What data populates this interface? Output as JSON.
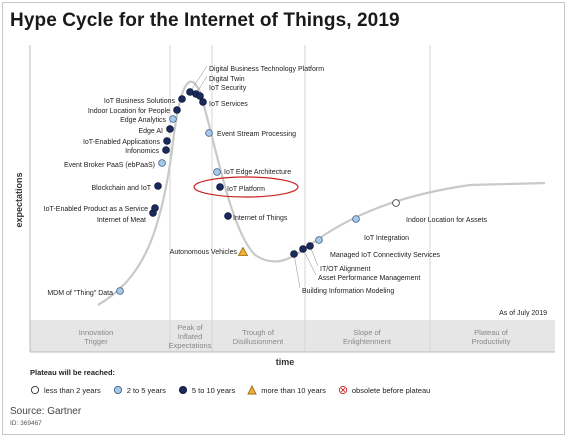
{
  "title": "Hype Cycle for the Internet of Things, 2019",
  "colors": {
    "curve": "#c9c9c9",
    "phase_band": "#e6e6e6",
    "less_than_2": "#ffffff",
    "two_to_5": "#a7c8e6",
    "five_to_10": "#1b2a5c",
    "more_than_10": "#f2b134",
    "highlight": "#cc2222"
  },
  "chart_data": {
    "type": "scatter",
    "ylabel": "expectations",
    "xlabel": "time",
    "as_of": "As of July 2019",
    "phases": [
      {
        "line1": "Innovation",
        "line2": "Trigger",
        "line3": ""
      },
      {
        "line1": "Peak of",
        "line2": "Inflated",
        "line3": "Expectations"
      },
      {
        "line1": "Trough of",
        "line2": "Disillusionment",
        "line3": ""
      },
      {
        "line1": "Slope of",
        "line2": "Enlightenment",
        "line3": ""
      },
      {
        "line1": "Plateau of",
        "line2": "Productivity",
        "line3": ""
      }
    ],
    "points": [
      {
        "label": "MDM of \"Thing\" Data",
        "category": "2 to 5 years"
      },
      {
        "label": "Internet of Meat",
        "category": "5 to 10 years"
      },
      {
        "label": "IoT-Enabled Product as a Service",
        "category": "5 to 10 years"
      },
      {
        "label": "Blockchain and IoT",
        "category": "5 to 10 years"
      },
      {
        "label": "Event Broker PaaS (ebPaaS)",
        "category": "2 to 5 years"
      },
      {
        "label": "Infonomics",
        "category": "5 to 10 years"
      },
      {
        "label": "IoT-Enabled Applications",
        "category": "5 to 10 years"
      },
      {
        "label": "Edge AI",
        "category": "5 to 10 years"
      },
      {
        "label": "Edge Analytics",
        "category": "2 to 5 years"
      },
      {
        "label": "Indoor Location for People",
        "category": "5 to 10 years"
      },
      {
        "label": "IoT Business Solutions",
        "category": "5 to 10 years"
      },
      {
        "label": "Digital Business Technology Platform",
        "category": "5 to 10 years"
      },
      {
        "label": "Digital Twin",
        "category": "5 to 10 years"
      },
      {
        "label": "IoT Security",
        "category": "5 to 10 years"
      },
      {
        "label": "IoT Services",
        "category": "5 to 10 years"
      },
      {
        "label": "Event Stream Processing",
        "category": "2 to 5 years"
      },
      {
        "label": "IoT Edge Architecture",
        "category": "2 to 5 years"
      },
      {
        "label": "IoT Platform",
        "category": "5 to 10 years",
        "highlighted": true
      },
      {
        "label": "Internet of Things",
        "category": "5 to 10 years"
      },
      {
        "label": "Autonomous Vehicles",
        "category": "more than 10 years"
      },
      {
        "label": "Building Information Modeling",
        "category": "5 to 10 years"
      },
      {
        "label": "Asset Performance Management",
        "category": "5 to 10 years"
      },
      {
        "label": "IT/OT Alignment",
        "category": "5 to 10 years"
      },
      {
        "label": "Managed IoT Connectivity Services",
        "category": "2 to 5 years"
      },
      {
        "label": "IoT Integration",
        "category": "2 to 5 years"
      },
      {
        "label": "Indoor Location for Assets",
        "category": "less than 2 years"
      }
    ]
  },
  "legend": {
    "title": "Plateau will be reached:",
    "items": [
      {
        "label": "less than 2 years",
        "shape": "circle-white"
      },
      {
        "label": "2 to 5 years",
        "shape": "circle-light"
      },
      {
        "label": "5 to 10 years",
        "shape": "circle-dark"
      },
      {
        "label": "more than 10 years",
        "shape": "triangle"
      },
      {
        "label": "obsolete before plateau",
        "shape": "circle-x"
      }
    ]
  },
  "source": "Source: Gartner",
  "doc_id": "ID: 369467"
}
